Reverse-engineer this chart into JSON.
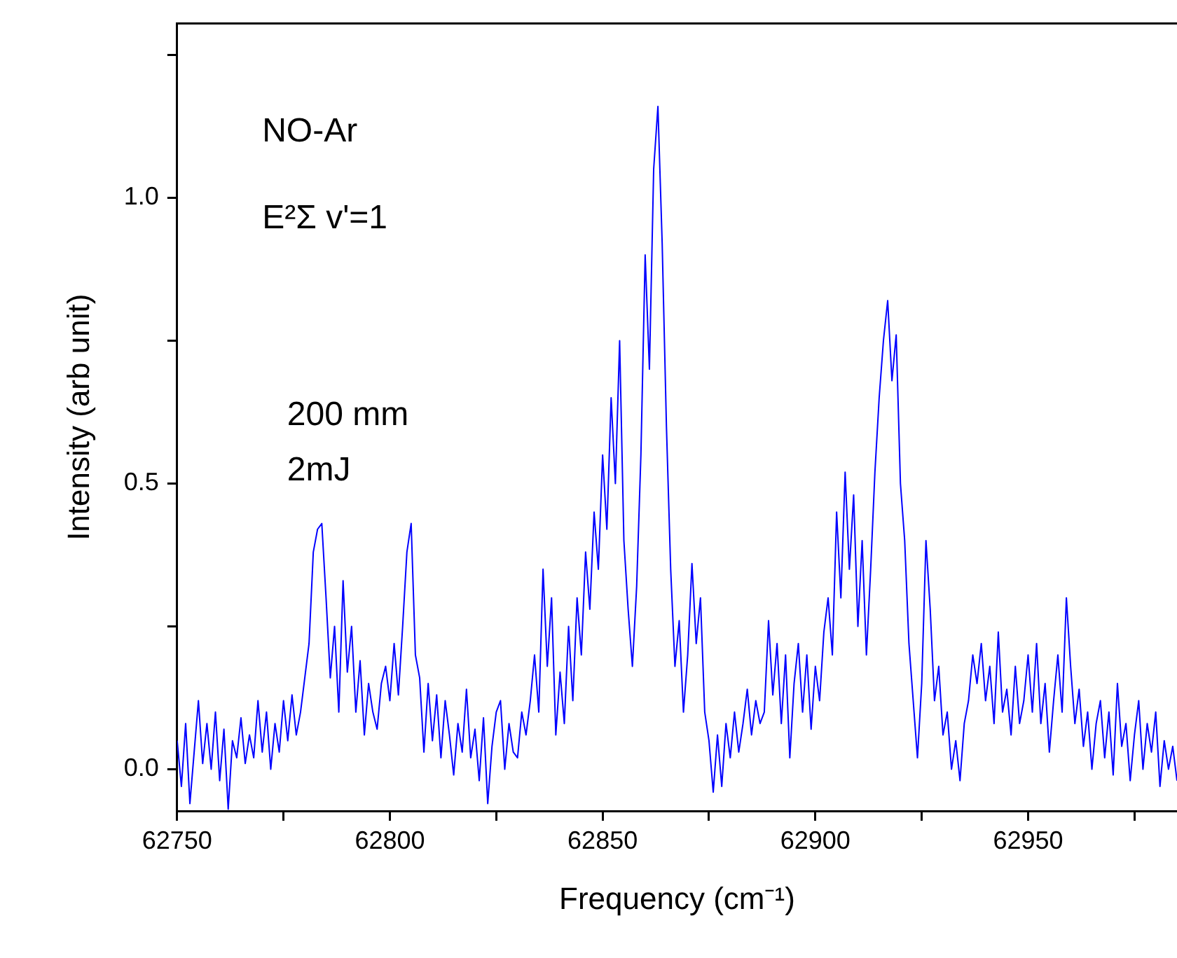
{
  "chart_data": {
    "type": "line",
    "xlabel": "Frequency (cm⁻¹)",
    "ylabel": "Intensity (arb unit)",
    "annotations": [
      "NO-Ar",
      "E²Σ v'=1",
      "200 mm",
      "2mJ"
    ],
    "xlim": [
      62750,
      62985
    ],
    "ylim": [
      -0.073,
      1.305
    ],
    "xticks": [
      62750,
      {
        "value": 62775,
        "label": null
      },
      62800,
      {
        "value": 62825,
        "label": null
      },
      62850,
      {
        "value": 62875,
        "label": null
      },
      62900,
      {
        "value": 62925,
        "label": null
      },
      62950,
      {
        "value": 62975,
        "label": null
      }
    ],
    "yticks": [
      {
        "value": 0,
        "label": "0.0"
      },
      {
        "value": 0.25,
        "label": null
      },
      {
        "value": 0.5,
        "label": "0.5"
      },
      {
        "value": 0.75,
        "label": null
      },
      {
        "value": 1,
        "label": "1.0"
      },
      {
        "value": 1.25,
        "label": null
      }
    ],
    "grid": false,
    "legend": false,
    "marker": "none",
    "line_style": "solid",
    "series": [
      {
        "color": "#0000ff",
        "x": [
          62750,
          62751,
          62752,
          62753,
          62754,
          62755,
          62756,
          62757,
          62758,
          62759,
          62760,
          62761,
          62762,
          62763,
          62764,
          62765,
          62766,
          62767,
          62768,
          62769,
          62770,
          62771,
          62772,
          62773,
          62774,
          62775,
          62776,
          62777,
          62778,
          62779,
          62780,
          62781,
          62782,
          62783,
          62784,
          62785,
          62786,
          62787,
          62788,
          62789,
          62790,
          62791,
          62792,
          62793,
          62794,
          62795,
          62796,
          62797,
          62798,
          62799,
          62800,
          62801,
          62802,
          62803,
          62804,
          62805,
          62806,
          62807,
          62808,
          62809,
          62810,
          62811,
          62812,
          62813,
          62814,
          62815,
          62816,
          62817,
          62818,
          62819,
          62820,
          62821,
          62822,
          62823,
          62824,
          62825,
          62826,
          62827,
          62828,
          62829,
          62830,
          62831,
          62832,
          62833,
          62834,
          62835,
          62836,
          62837,
          62838,
          62839,
          62840,
          62841,
          62842,
          62843,
          62844,
          62845,
          62846,
          62847,
          62848,
          62849,
          62850,
          62851,
          62852,
          62853,
          62854,
          62855,
          62856,
          62857,
          62858,
          62859,
          62860,
          62861,
          62862,
          62863,
          62864,
          62865,
          62866,
          62867,
          62868,
          62869,
          62870,
          62871,
          62872,
          62873,
          62874,
          62875,
          62876,
          62877,
          62878,
          62879,
          62880,
          62881,
          62882,
          62883,
          62884,
          62885,
          62886,
          62887,
          62888,
          62889,
          62890,
          62891,
          62892,
          62893,
          62894,
          62895,
          62896,
          62897,
          62898,
          62899,
          62900,
          62901,
          62902,
          62903,
          62904,
          62905,
          62906,
          62907,
          62908,
          62909,
          62910,
          62911,
          62912,
          62913,
          62914,
          62915,
          62916,
          62917,
          62918,
          62919,
          62920,
          62921,
          62922,
          62923,
          62924,
          62925,
          62926,
          62927,
          62928,
          62929,
          62930,
          62931,
          62932,
          62933,
          62934,
          62935,
          62936,
          62937,
          62938,
          62939,
          62940,
          62941,
          62942,
          62943,
          62944,
          62945,
          62946,
          62947,
          62948,
          62949,
          62950,
          62951,
          62952,
          62953,
          62954,
          62955,
          62956,
          62957,
          62958,
          62959,
          62960,
          62961,
          62962,
          62963,
          62964,
          62965,
          62966,
          62967,
          62968,
          62969,
          62970,
          62971,
          62972,
          62973,
          62974,
          62975,
          62976,
          62977,
          62978,
          62979,
          62980,
          62981,
          62982,
          62983,
          62984,
          62985
        ],
        "values": [
          0.05,
          -0.03,
          0.08,
          -0.06,
          0.03,
          0.12,
          0.01,
          0.08,
          0.0,
          0.1,
          -0.02,
          0.07,
          -0.07,
          0.05,
          0.02,
          0.09,
          0.01,
          0.06,
          0.02,
          0.12,
          0.03,
          0.1,
          0.0,
          0.08,
          0.03,
          0.12,
          0.05,
          0.13,
          0.06,
          0.1,
          0.16,
          0.22,
          0.38,
          0.42,
          0.43,
          0.3,
          0.16,
          0.25,
          0.1,
          0.33,
          0.17,
          0.25,
          0.1,
          0.19,
          0.06,
          0.15,
          0.1,
          0.07,
          0.15,
          0.18,
          0.12,
          0.22,
          0.13,
          0.25,
          0.38,
          0.43,
          0.2,
          0.16,
          0.03,
          0.15,
          0.05,
          0.13,
          0.02,
          0.12,
          0.06,
          -0.01,
          0.08,
          0.03,
          0.14,
          0.02,
          0.07,
          -0.02,
          0.09,
          -0.06,
          0.04,
          0.1,
          0.12,
          0.0,
          0.08,
          0.03,
          0.02,
          0.1,
          0.06,
          0.12,
          0.2,
          0.1,
          0.35,
          0.18,
          0.3,
          0.06,
          0.17,
          0.08,
          0.25,
          0.12,
          0.3,
          0.2,
          0.38,
          0.28,
          0.45,
          0.35,
          0.55,
          0.42,
          0.65,
          0.5,
          0.75,
          0.4,
          0.28,
          0.18,
          0.32,
          0.55,
          0.9,
          0.7,
          1.05,
          1.16,
          0.92,
          0.6,
          0.35,
          0.18,
          0.26,
          0.1,
          0.2,
          0.36,
          0.22,
          0.3,
          0.1,
          0.05,
          -0.04,
          0.06,
          -0.03,
          0.08,
          0.02,
          0.1,
          0.03,
          0.08,
          0.14,
          0.06,
          0.12,
          0.08,
          0.1,
          0.26,
          0.13,
          0.22,
          0.08,
          0.2,
          0.02,
          0.15,
          0.22,
          0.1,
          0.2,
          0.07,
          0.18,
          0.12,
          0.24,
          0.3,
          0.2,
          0.45,
          0.3,
          0.52,
          0.35,
          0.48,
          0.25,
          0.4,
          0.2,
          0.35,
          0.52,
          0.65,
          0.75,
          0.82,
          0.68,
          0.76,
          0.5,
          0.4,
          0.22,
          0.12,
          0.02,
          0.15,
          0.4,
          0.28,
          0.12,
          0.18,
          0.06,
          0.1,
          0.0,
          0.05,
          -0.02,
          0.08,
          0.12,
          0.2,
          0.15,
          0.22,
          0.12,
          0.18,
          0.08,
          0.24,
          0.1,
          0.14,
          0.06,
          0.18,
          0.08,
          0.12,
          0.2,
          0.1,
          0.22,
          0.08,
          0.15,
          0.03,
          0.12,
          0.2,
          0.1,
          0.3,
          0.18,
          0.08,
          0.14,
          0.04,
          0.1,
          0.0,
          0.08,
          0.12,
          0.02,
          0.1,
          -0.01,
          0.15,
          0.04,
          0.08,
          -0.02,
          0.06,
          0.12,
          0.0,
          0.08,
          0.03,
          0.1,
          -0.03,
          0.05,
          0.0,
          0.04,
          -0.02
        ]
      }
    ]
  }
}
